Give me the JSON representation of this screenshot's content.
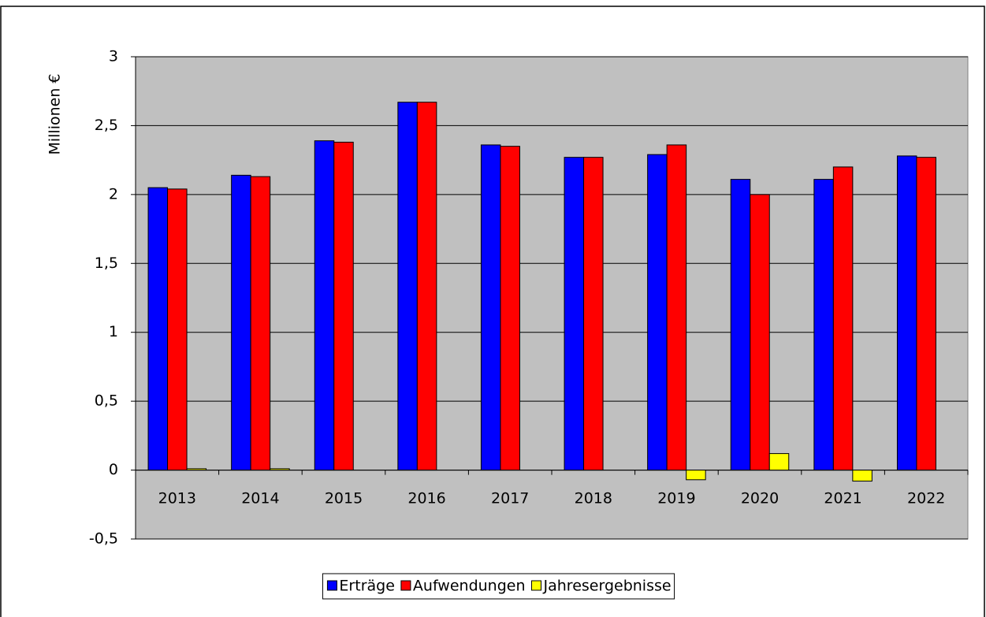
{
  "chart_data": {
    "type": "bar",
    "y_label": "Millionen €",
    "categories": [
      "2013",
      "2014",
      "2015",
      "2016",
      "2017",
      "2018",
      "2019",
      "2020",
      "2021",
      "2022"
    ],
    "series": [
      {
        "name": "Erträge",
        "color": "#0000ff",
        "values": [
          2.05,
          2.14,
          2.39,
          2.67,
          2.36,
          2.27,
          2.29,
          2.11,
          2.11,
          2.28
        ]
      },
      {
        "name": "Aufwendungen",
        "color": "#ff0000",
        "values": [
          2.04,
          2.13,
          2.38,
          2.67,
          2.35,
          2.27,
          2.36,
          2.0,
          2.2,
          2.27
        ]
      },
      {
        "name": "Jahresergebnisse",
        "color": "#ffff00",
        "values": [
          0.01,
          0.01,
          0,
          0,
          0,
          0,
          -0.07,
          0.12,
          -0.08,
          0
        ]
      }
    ],
    "ylim": [
      -0.5,
      3
    ],
    "yticks": [
      {
        "value": -0.5,
        "label": "-0,5"
      },
      0,
      {
        "value": 0.5,
        "label": "0,5"
      },
      1,
      {
        "value": 1.5,
        "label": "1,5"
      },
      2,
      {
        "value": 2.5,
        "label": "2,5"
      },
      3
    ],
    "grid": true,
    "legend": "bottom"
  }
}
